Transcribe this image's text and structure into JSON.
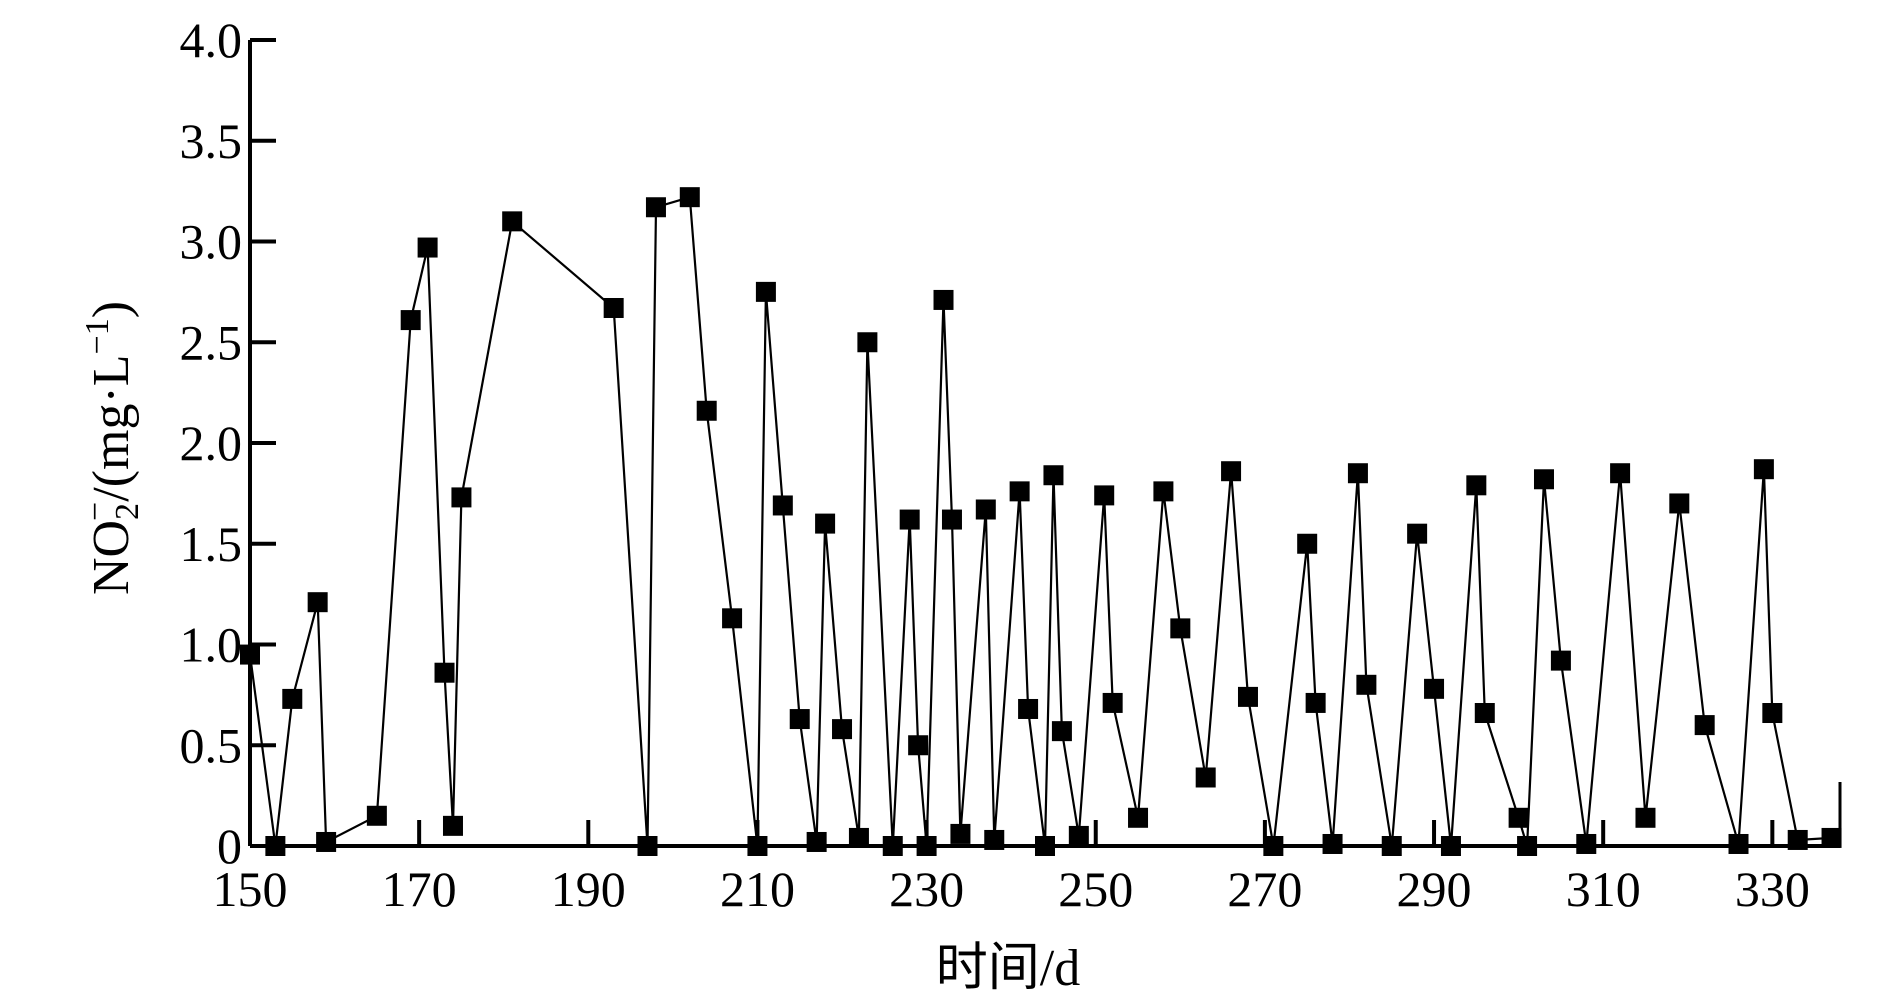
{
  "chart_data": {
    "type": "line",
    "xlabel": "时间/d",
    "ylabel": {
      "prefix": "NO",
      "sub": "2",
      "sup": "−",
      "middle": "/(mg·L",
      "unit_sup": "−1",
      "suffix": ")"
    },
    "xlim": [
      150,
      338
    ],
    "ylim": [
      0,
      4.0
    ],
    "x_ticks": [
      150,
      170,
      190,
      210,
      230,
      250,
      270,
      290,
      310,
      330
    ],
    "x_tick_labels": [
      "150",
      "170",
      "190",
      "210",
      "230",
      "250",
      "270",
      "290",
      "310",
      "330"
    ],
    "y_ticks": [
      0,
      0.5,
      1.0,
      1.5,
      2.0,
      2.5,
      3.0,
      3.5,
      4.0
    ],
    "y_tick_labels": [
      "0",
      "0.5",
      "1.0",
      "1.5",
      "2.0",
      "2.5",
      "3.0",
      "3.5",
      "4.0"
    ],
    "grid": false,
    "marker": "square",
    "line_color": "#000000",
    "series": [
      {
        "x": [
          150,
          153,
          155,
          158,
          159,
          165,
          169,
          171,
          173,
          174,
          175,
          181,
          193,
          197,
          198,
          202,
          204,
          207,
          210,
          211,
          213,
          215,
          217,
          218,
          220,
          222,
          223,
          226,
          228,
          229,
          230,
          232,
          233,
          234,
          237,
          238,
          241,
          242,
          244,
          245,
          246,
          248,
          251,
          252,
          255,
          258,
          260,
          263,
          266,
          268,
          271,
          275,
          276,
          278,
          281,
          282,
          285,
          288,
          290,
          292,
          295,
          296,
          300,
          301,
          303,
          305,
          308,
          312,
          315,
          319,
          322,
          326,
          329,
          330,
          333,
          337
        ],
        "y": [
          0.95,
          0,
          0.73,
          1.21,
          0.02,
          0.15,
          2.61,
          2.97,
          0.86,
          0.1,
          1.73,
          3.1,
          2.67,
          0,
          3.17,
          3.22,
          2.16,
          1.13,
          0,
          2.75,
          1.69,
          0.63,
          0.02,
          1.6,
          0.58,
          0.04,
          2.5,
          0,
          1.62,
          0.5,
          0,
          2.71,
          1.62,
          0.06,
          1.67,
          0.03,
          1.76,
          0.68,
          0,
          1.84,
          0.57,
          0.05,
          1.74,
          0.71,
          0.14,
          1.76,
          1.08,
          0.34,
          1.86,
          0.74,
          0,
          1.5,
          0.71,
          0.01,
          1.85,
          0.8,
          0,
          1.55,
          0.78,
          0,
          1.79,
          0.66,
          0.14,
          0,
          1.82,
          0.92,
          0.01,
          1.85,
          0.14,
          1.7,
          0.6,
          0.01,
          1.87,
          0.66,
          0.03,
          0.04
        ]
      }
    ]
  }
}
